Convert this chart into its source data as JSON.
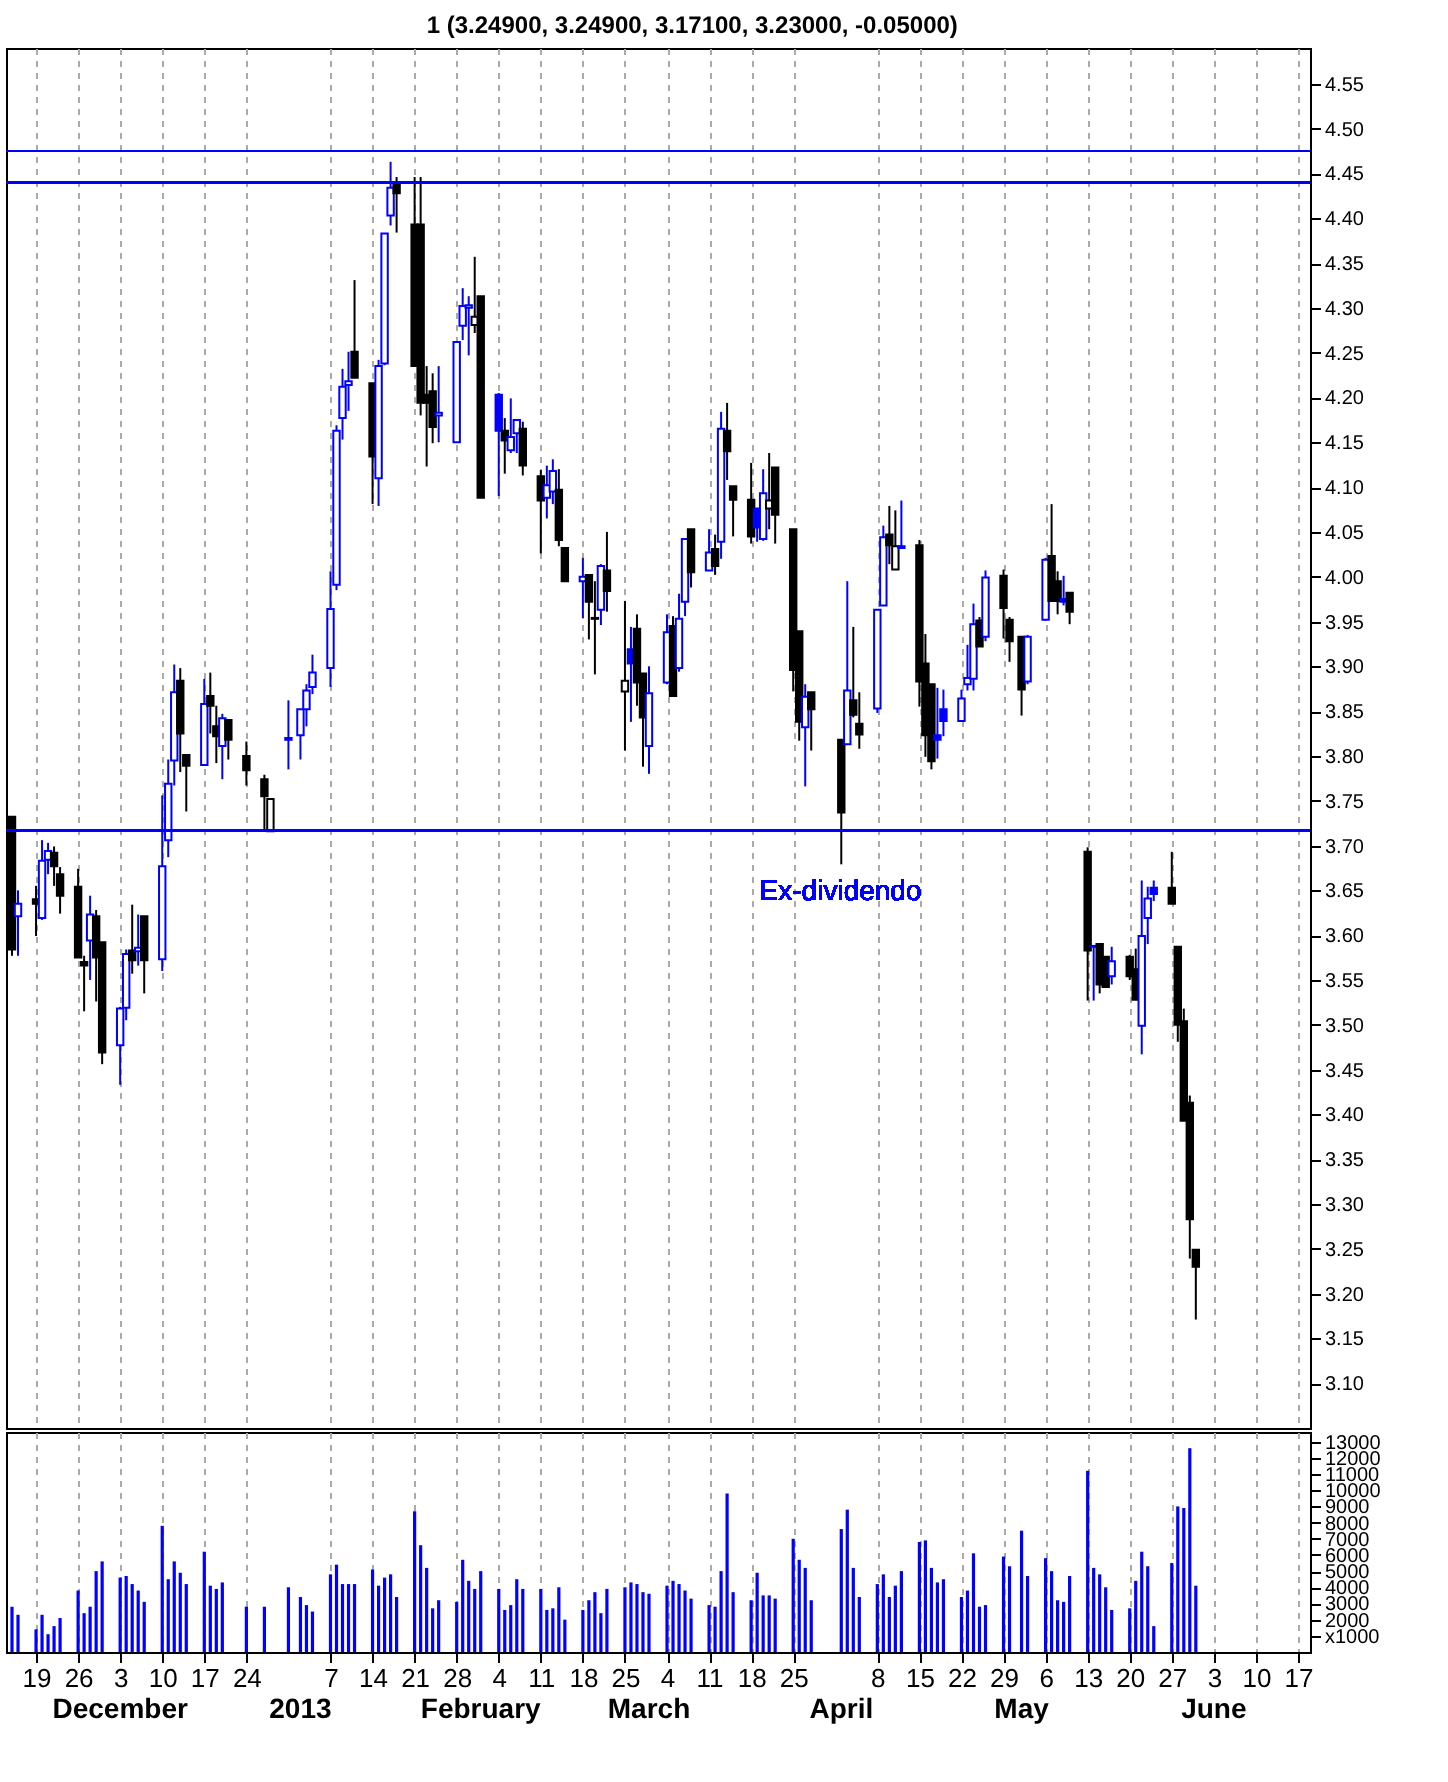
{
  "chart_data": [
    {
      "type": "candlestick",
      "title": "1 (3.24900, 3.24900, 3.17100, 3.23000, -0.05000)",
      "x": [
        "2012-11-15",
        "2012-11-16",
        "2012-11-19",
        "2012-11-20",
        "2012-11-21",
        "2012-11-22",
        "2012-11-23",
        "2012-11-26",
        "2012-11-27",
        "2012-11-28",
        "2012-11-29",
        "2012-11-30",
        "2012-12-03",
        "2012-12-04",
        "2012-12-05",
        "2012-12-06",
        "2012-12-07",
        "2012-12-10",
        "2012-12-11",
        "2012-12-12",
        "2012-12-13",
        "2012-12-14",
        "2012-12-17",
        "2012-12-18",
        "2012-12-19",
        "2012-12-20",
        "2012-12-21",
        "2012-12-24",
        "2012-12-27",
        "2012-12-28",
        "2012-12-31",
        "2013-01-02",
        "2013-01-03",
        "2013-01-04",
        "2013-01-07",
        "2013-01-08",
        "2013-01-09",
        "2013-01-10",
        "2013-01-11",
        "2013-01-14",
        "2013-01-15",
        "2013-01-16",
        "2013-01-17",
        "2013-01-18",
        "2013-01-21",
        "2013-01-22",
        "2013-01-23",
        "2013-01-24",
        "2013-01-25",
        "2013-01-28",
        "2013-01-29",
        "2013-01-30",
        "2013-01-31",
        "2013-02-01",
        "2013-02-04",
        "2013-02-05",
        "2013-02-06",
        "2013-02-07",
        "2013-02-08",
        "2013-02-11",
        "2013-02-12",
        "2013-02-13",
        "2013-02-14",
        "2013-02-15",
        "2013-02-18",
        "2013-02-19",
        "2013-02-20",
        "2013-02-21",
        "2013-02-22",
        "2013-02-25",
        "2013-02-26",
        "2013-02-27",
        "2013-02-28",
        "2013-03-01",
        "2013-03-04",
        "2013-03-05",
        "2013-03-06",
        "2013-03-07",
        "2013-03-08",
        "2013-03-11",
        "2013-03-12",
        "2013-03-13",
        "2013-03-14",
        "2013-03-15",
        "2013-03-18",
        "2013-03-19",
        "2013-03-20",
        "2013-03-21",
        "2013-03-22",
        "2013-03-25",
        "2013-03-26",
        "2013-03-27",
        "2013-03-28",
        "2013-04-02",
        "2013-04-03",
        "2013-04-04",
        "2013-04-05",
        "2013-04-08",
        "2013-04-09",
        "2013-04-10",
        "2013-04-11",
        "2013-04-12",
        "2013-04-15",
        "2013-04-16",
        "2013-04-17",
        "2013-04-18",
        "2013-04-19",
        "2013-04-22",
        "2013-04-23",
        "2013-04-24",
        "2013-04-25",
        "2013-04-26",
        "2013-04-29",
        "2013-04-30",
        "2013-05-02",
        "2013-05-03",
        "2013-05-06",
        "2013-05-07",
        "2013-05-08",
        "2013-05-09",
        "2013-05-10",
        "2013-05-13",
        "2013-05-14",
        "2013-05-15",
        "2013-05-16",
        "2013-05-17",
        "2013-05-20",
        "2013-05-21",
        "2013-05-22",
        "2013-05-23",
        "2013-05-24",
        "2013-05-27",
        "2013-05-28",
        "2013-05-29",
        "2013-05-30",
        "2013-05-31"
      ],
      "ohlc": [
        [
          3.732,
          3.732,
          3.577,
          3.584
        ],
        [
          3.621,
          3.65,
          3.577,
          3.635
        ],
        [
          3.64,
          3.655,
          3.599,
          3.635
        ],
        [
          3.619,
          3.706,
          3.617,
          3.683
        ],
        [
          3.684,
          3.703,
          3.668,
          3.694
        ],
        [
          3.692,
          3.699,
          3.655,
          3.677
        ],
        [
          3.668,
          3.676,
          3.624,
          3.644
        ],
        [
          3.654,
          3.674,
          3.575,
          3.575
        ],
        [
          3.57,
          3.577,
          3.515,
          3.566
        ],
        [
          3.594,
          3.644,
          3.55,
          3.623
        ],
        [
          3.621,
          3.628,
          3.526,
          3.575
        ],
        [
          3.592,
          3.592,
          3.456,
          3.469
        ],
        [
          3.477,
          3.52,
          3.433,
          3.518
        ],
        [
          3.519,
          3.584,
          3.505,
          3.579
        ],
        [
          3.583,
          3.634,
          3.557,
          3.572
        ],
        [
          3.582,
          3.623,
          3.566,
          3.586
        ],
        [
          3.621,
          3.621,
          3.535,
          3.572
        ],
        [
          3.573,
          3.756,
          3.56,
          3.677
        ],
        [
          3.706,
          3.796,
          3.687,
          3.769
        ],
        [
          3.795,
          3.902,
          3.767,
          3.871
        ],
        [
          3.884,
          3.898,
          3.782,
          3.825
        ],
        [
          3.801,
          3.801,
          3.738,
          3.789
        ],
        [
          3.79,
          3.886,
          3.79,
          3.858
        ],
        [
          3.867,
          3.893,
          3.825,
          3.856
        ],
        [
          3.833,
          3.856,
          3.792,
          3.822
        ],
        [
          3.811,
          3.847,
          3.774,
          3.842
        ],
        [
          3.84,
          3.84,
          3.796,
          3.818
        ],
        [
          3.8,
          3.816,
          3.767,
          3.784
        ],
        [
          3.774,
          3.779,
          3.716,
          3.755
        ],
        [
          3.716,
          3.752,
          3.716,
          3.752
        ],
        [
          3.818,
          3.862,
          3.785,
          3.82
        ],
        [
          3.823,
          3.852,
          3.796,
          3.852
        ],
        [
          3.852,
          3.88,
          3.833,
          3.873
        ],
        [
          3.877,
          3.913,
          3.869,
          3.893
        ],
        [
          3.898,
          4.006,
          3.877,
          3.964
        ],
        [
          3.991,
          4.169,
          3.985,
          4.163
        ],
        [
          4.177,
          4.232,
          4.153,
          4.212
        ],
        [
          4.214,
          4.251,
          4.185,
          4.218
        ],
        [
          4.251,
          4.331,
          4.222,
          4.222
        ],
        [
          4.216,
          4.216,
          4.081,
          4.134
        ],
        [
          4.11,
          4.242,
          4.079,
          4.235
        ],
        [
          4.238,
          4.383,
          4.236,
          4.383
        ],
        [
          4.403,
          4.463,
          4.392,
          4.434
        ],
        [
          4.437,
          4.446,
          4.384,
          4.428
        ],
        [
          4.393,
          4.446,
          4.235,
          4.235
        ],
        [
          4.393,
          4.446,
          4.18,
          4.194
        ],
        [
          4.203,
          4.235,
          4.123,
          4.194
        ],
        [
          4.207,
          4.227,
          4.149,
          4.167
        ],
        [
          4.18,
          4.235,
          4.15,
          4.183
        ],
        [
          4.15,
          4.262,
          4.15,
          4.262
        ],
        [
          4.28,
          4.322,
          4.264,
          4.302
        ],
        [
          4.3,
          4.313,
          4.247,
          4.303
        ],
        [
          4.281,
          4.357,
          4.272,
          4.29
        ],
        [
          4.313,
          4.313,
          4.088,
          4.088
        ],
        [
          4.203,
          4.205,
          4.09,
          4.163
        ],
        [
          4.163,
          4.177,
          4.115,
          4.152
        ],
        [
          4.141,
          4.199,
          4.138,
          4.156
        ],
        [
          4.16,
          4.175,
          4.138,
          4.175
        ],
        [
          4.165,
          4.173,
          4.113,
          4.124
        ],
        [
          4.112,
          4.119,
          4.026,
          4.085
        ],
        [
          4.088,
          4.124,
          4.065,
          4.102
        ],
        [
          4.095,
          4.131,
          4.081,
          4.118
        ],
        [
          4.097,
          4.12,
          4.034,
          4.041
        ],
        [
          4.032,
          4.032,
          3.995,
          3.995
        ],
        [
          3.995,
          4.021,
          3.954,
          4.0
        ],
        [
          4.002,
          4.002,
          3.93,
          3.972
        ],
        [
          3.954,
          3.995,
          3.891,
          3.953
        ],
        [
          3.963,
          4.014,
          3.946,
          4.012
        ],
        [
          4.007,
          4.05,
          3.961,
          3.984
        ],
        [
          3.872,
          3.973,
          3.806,
          3.884
        ],
        [
          3.919,
          3.944,
          3.838,
          3.903
        ],
        [
          3.942,
          3.958,
          3.856,
          3.882
        ],
        [
          3.892,
          3.892,
          3.788,
          3.843
        ],
        [
          3.811,
          3.9,
          3.78,
          3.87
        ],
        [
          3.882,
          3.958,
          3.88,
          3.938
        ],
        [
          3.945,
          3.956,
          3.867,
          3.867
        ],
        [
          3.898,
          3.981,
          3.894,
          3.953
        ],
        [
          3.972,
          4.042,
          3.956,
          4.042
        ],
        [
          4.053,
          4.053,
          3.988,
          4.005
        ],
        [
          4.007,
          4.053,
          4.007,
          4.027
        ],
        [
          4.031,
          4.047,
          4.002,
          4.012
        ],
        [
          4.039,
          4.184,
          4.02,
          4.165
        ],
        [
          4.163,
          4.194,
          4.108,
          4.14
        ],
        [
          4.101,
          4.101,
          4.045,
          4.086
        ],
        [
          4.086,
          4.127,
          4.037,
          4.045
        ],
        [
          4.076,
          4.076,
          4.039,
          4.055
        ],
        [
          4.042,
          4.12,
          4.04,
          4.093
        ],
        [
          4.076,
          4.138,
          4.053,
          4.085
        ],
        [
          4.122,
          4.122,
          4.037,
          4.069
        ],
        [
          4.053,
          4.053,
          3.872,
          3.896
        ],
        [
          3.939,
          3.939,
          3.817,
          3.838
        ],
        [
          3.832,
          3.88,
          3.766,
          3.866
        ],
        [
          3.871,
          3.871,
          3.806,
          3.852
        ],
        [
          3.818,
          3.818,
          3.679,
          3.737
        ],
        [
          3.813,
          3.995,
          3.813,
          3.873
        ],
        [
          3.862,
          3.944,
          3.843,
          3.846
        ],
        [
          3.836,
          3.871,
          3.808,
          3.824
        ],
        [
          3.853,
          3.963,
          3.848,
          3.963
        ],
        [
          3.968,
          4.057,
          3.968,
          4.044
        ],
        [
          4.047,
          4.079,
          4.014,
          4.035
        ],
        [
          4.008,
          4.074,
          4.008,
          4.034
        ],
        [
          4.034,
          4.085,
          4.032,
          4.032
        ],
        [
          4.035,
          4.041,
          3.855,
          3.883
        ],
        [
          3.903,
          3.936,
          3.799,
          3.823
        ],
        [
          3.88,
          3.88,
          3.785,
          3.794
        ],
        [
          3.823,
          3.876,
          3.797,
          3.818
        ],
        [
          3.852,
          3.874,
          3.822,
          3.839
        ],
        [
          3.839,
          3.874,
          3.838,
          3.864
        ],
        [
          3.88,
          3.924,
          3.873,
          3.887
        ],
        [
          3.886,
          3.97,
          3.873,
          3.947
        ],
        [
          3.951,
          3.955,
          3.922,
          3.922
        ],
        [
          3.933,
          4.007,
          3.928,
          3.999
        ],
        [
          4.001,
          4.008,
          3.931,
          3.965
        ],
        [
          3.952,
          3.955,
          3.905,
          3.928
        ],
        [
          3.933,
          3.933,
          3.845,
          3.874
        ],
        [
          3.883,
          3.935,
          3.88,
          3.933
        ],
        [
          3.952,
          4.021,
          3.951,
          4.019
        ],
        [
          4.023,
          4.081,
          3.973,
          3.973
        ],
        [
          3.995,
          4.006,
          3.958,
          3.973
        ],
        [
          3.975,
          4.001,
          3.968,
          3.972
        ],
        [
          3.982,
          3.982,
          3.947,
          3.961
        ],
        [
          3.693,
          3.698,
          3.527,
          3.583
        ],
        [
          3.587,
          3.588,
          3.527,
          3.588
        ],
        [
          3.59,
          3.59,
          3.535,
          3.545
        ],
        [
          3.576,
          3.576,
          3.541,
          3.542
        ],
        [
          3.554,
          3.587,
          3.545,
          3.571
        ],
        [
          3.576,
          3.578,
          3.55,
          3.554
        ],
        [
          3.562,
          3.585,
          3.528,
          3.528
        ],
        [
          3.499,
          3.661,
          3.467,
          3.599
        ],
        [
          3.619,
          3.654,
          3.59,
          3.641
        ],
        [
          3.653,
          3.661,
          3.638,
          3.646
        ],
        [
          3.653,
          3.693,
          3.635,
          3.635
        ],
        [
          3.587,
          3.587,
          3.481,
          3.5
        ],
        [
          3.504,
          3.518,
          3.393,
          3.393
        ],
        [
          3.413,
          3.421,
          3.239,
          3.283
        ],
        [
          3.249,
          3.249,
          3.171,
          3.23
        ]
      ],
      "colors": [
        "#000000",
        "#0000ff",
        "#000000",
        "#0000ff",
        "#0000ff",
        "#000000",
        "#000000",
        "#000000",
        "#000000",
        "#0000ff",
        "#000000",
        "#000000",
        "#0000ff",
        "#0000ff",
        "#000000",
        "#0000ff",
        "#000000",
        "#0000ff",
        "#0000ff",
        "#0000ff",
        "#000000",
        "#000000",
        "#0000ff",
        "#000000",
        "#000000",
        "#0000ff",
        "#000000",
        "#000000",
        "#000000",
        "#000000",
        "#0000ff",
        "#0000ff",
        "#0000ff",
        "#0000ff",
        "#0000ff",
        "#0000ff",
        "#0000ff",
        "#0000ff",
        "#000000",
        "#000000",
        "#0000ff",
        "#0000ff",
        "#0000ff",
        "#000000",
        "#000000",
        "#000000",
        "#000000",
        "#000000",
        "#0000ff",
        "#0000ff",
        "#0000ff",
        "#0000ff",
        "#000000",
        "#000000",
        "#0000ff",
        "#000000",
        "#0000ff",
        "#0000ff",
        "#000000",
        "#000000",
        "#0000ff",
        "#0000ff",
        "#000000",
        "#000000",
        "#0000ff",
        "#000000",
        "#000000",
        "#0000ff",
        "#000000",
        "#000000",
        "#0000ff",
        "#000000",
        "#000000",
        "#0000ff",
        "#0000ff",
        "#000000",
        "#0000ff",
        "#0000ff",
        "#000000",
        "#0000ff",
        "#000000",
        "#0000ff",
        "#000000",
        "#000000",
        "#000000",
        "#0000ff",
        "#0000ff",
        "#000000",
        "#000000",
        "#000000",
        "#000000",
        "#0000ff",
        "#000000",
        "#000000",
        "#0000ff",
        "#000000",
        "#000000",
        "#0000ff",
        "#0000ff",
        "#000000",
        "#000000",
        "#0000ff",
        "#000000",
        "#000000",
        "#000000",
        "#0000ff",
        "#0000ff",
        "#0000ff",
        "#0000ff",
        "#0000ff",
        "#000000",
        "#0000ff",
        "#000000",
        "#000000",
        "#000000",
        "#0000ff",
        "#0000ff",
        "#000000",
        "#000000",
        "#0000ff",
        "#000000",
        "#000000",
        "#0000ff",
        "#000000",
        "#000000",
        "#0000ff",
        "#000000",
        "#000000",
        "#0000ff",
        "#0000ff",
        "#0000ff",
        "#000000",
        "#000000",
        "#000000",
        "#000000",
        "#000000"
      ],
      "xlim": [
        "2012-11-14",
        "2013-06-19"
      ],
      "xticks": [
        {
          "value": "2012-11-19",
          "label": null
        },
        {
          "value": "2012-11-26",
          "label": null
        },
        {
          "value": "2012-12-03",
          "label": null
        },
        {
          "value": "2012-12-10",
          "label": null
        },
        {
          "value": "2012-12-17",
          "label": null
        },
        {
          "value": "2012-12-24",
          "label": null
        },
        {
          "value": "2013-01-07",
          "label": null
        },
        {
          "value": "2013-01-14",
          "label": null
        },
        {
          "value": "2013-01-21",
          "label": null
        },
        {
          "value": "2013-01-28",
          "label": null
        },
        {
          "value": "2013-02-04",
          "label": null
        },
        {
          "value": "2013-02-11",
          "label": null
        },
        {
          "value": "2013-02-18",
          "label": null
        },
        {
          "value": "2013-02-25",
          "label": null
        },
        {
          "value": "2013-03-04",
          "label": null
        },
        {
          "value": "2013-03-11",
          "label": null
        },
        {
          "value": "2013-03-18",
          "label": null
        },
        {
          "value": "2013-03-25",
          "label": null
        },
        {
          "value": "2013-04-08",
          "label": null
        },
        {
          "value": "2013-04-15",
          "label": null
        },
        {
          "value": "2013-04-22",
          "label": null
        },
        {
          "value": "2013-04-29",
          "label": null
        },
        {
          "value": "2013-05-06",
          "label": null
        },
        {
          "value": "2013-05-13",
          "label": null
        },
        {
          "value": "2013-05-20",
          "label": null
        },
        {
          "value": "2013-05-27",
          "label": null
        },
        {
          "value": "2013-06-03",
          "label": null
        },
        {
          "value": "2013-06-10",
          "label": null
        },
        {
          "value": "2013-06-17",
          "label": null
        }
      ],
      "ylim": [
        3.05,
        4.59
      ],
      "yticks": [
        {
          "value": 3.1,
          "label": "3.10"
        },
        3.15,
        {
          "value": 3.2,
          "label": "3.20"
        },
        3.25,
        {
          "value": 3.3,
          "label": "3.30"
        },
        3.35,
        {
          "value": 3.4,
          "label": "3.40"
        },
        3.45,
        {
          "value": 3.5,
          "label": "3.50"
        },
        3.55,
        {
          "value": 3.6,
          "label": "3.60"
        },
        3.65,
        {
          "value": 3.7,
          "label": "3.70"
        },
        3.75,
        {
          "value": 3.8,
          "label": "3.80"
        },
        3.85,
        {
          "value": 3.9,
          "label": "3.90"
        },
        3.95,
        {
          "value": 4,
          "label": "4.00"
        },
        4.05,
        {
          "value": 4.1,
          "label": "4.10"
        },
        4.15,
        {
          "value": 4.2,
          "label": "4.20"
        },
        4.25,
        {
          "value": 4.3,
          "label": "4.30"
        },
        4.35,
        {
          "value": 4.4,
          "label": "4.40"
        },
        4.45,
        {
          "value": 4.5,
          "label": "4.50"
        },
        4.55
      ],
      "grid": "x",
      "tick_labels": "y",
      "ref_lines": [
        {
          "axis": "y",
          "value": 4.475,
          "color": "#0000ff"
        },
        {
          "axis": "y",
          "value": 4.44,
          "color": "#0000ff"
        },
        {
          "axis": "y",
          "value": 3.717,
          "color": "#0000ff"
        }
      ],
      "annotations": [
        "Ex-dividendo"
      ]
    },
    {
      "type": "bar",
      "x": [
        "2012-11-15",
        "2012-11-16",
        "2012-11-19",
        "2012-11-20",
        "2012-11-21",
        "2012-11-22",
        "2012-11-23",
        "2012-11-26",
        "2012-11-27",
        "2012-11-28",
        "2012-11-29",
        "2012-11-30",
        "2012-12-03",
        "2012-12-04",
        "2012-12-05",
        "2012-12-06",
        "2012-12-07",
        "2012-12-10",
        "2012-12-11",
        "2012-12-12",
        "2012-12-13",
        "2012-12-14",
        "2012-12-17",
        "2012-12-18",
        "2012-12-19",
        "2012-12-20",
        "2012-12-21",
        "2012-12-24",
        "2012-12-27",
        "2012-12-28",
        "2012-12-31",
        "2013-01-02",
        "2013-01-03",
        "2013-01-04",
        "2013-01-07",
        "2013-01-08",
        "2013-01-09",
        "2013-01-10",
        "2013-01-11",
        "2013-01-14",
        "2013-01-15",
        "2013-01-16",
        "2013-01-17",
        "2013-01-18",
        "2013-01-21",
        "2013-01-22",
        "2013-01-23",
        "2013-01-24",
        "2013-01-25",
        "2013-01-28",
        "2013-01-29",
        "2013-01-30",
        "2013-01-31",
        "2013-02-01",
        "2013-02-04",
        "2013-02-05",
        "2013-02-06",
        "2013-02-07",
        "2013-02-08",
        "2013-02-11",
        "2013-02-12",
        "2013-02-13",
        "2013-02-14",
        "2013-02-15",
        "2013-02-18",
        "2013-02-19",
        "2013-02-20",
        "2013-02-21",
        "2013-02-22",
        "2013-02-25",
        "2013-02-26",
        "2013-02-27",
        "2013-02-28",
        "2013-03-01",
        "2013-03-04",
        "2013-03-05",
        "2013-03-06",
        "2013-03-07",
        "2013-03-08",
        "2013-03-11",
        "2013-03-12",
        "2013-03-13",
        "2013-03-14",
        "2013-03-15",
        "2013-03-18",
        "2013-03-19",
        "2013-03-20",
        "2013-03-21",
        "2013-03-22",
        "2013-03-25",
        "2013-03-26",
        "2013-03-27",
        "2013-03-28",
        "2013-04-02",
        "2013-04-03",
        "2013-04-04",
        "2013-04-05",
        "2013-04-08",
        "2013-04-09",
        "2013-04-10",
        "2013-04-11",
        "2013-04-12",
        "2013-04-15",
        "2013-04-16",
        "2013-04-17",
        "2013-04-18",
        "2013-04-19",
        "2013-04-22",
        "2013-04-23",
        "2013-04-24",
        "2013-04-25",
        "2013-04-26",
        "2013-04-29",
        "2013-04-30",
        "2013-05-02",
        "2013-05-03",
        "2013-05-06",
        "2013-05-07",
        "2013-05-08",
        "2013-05-09",
        "2013-05-10",
        "2013-05-13",
        "2013-05-14",
        "2013-05-15",
        "2013-05-16",
        "2013-05-17",
        "2013-05-20",
        "2013-05-21",
        "2013-05-22",
        "2013-05-23",
        "2013-05-24",
        "2013-05-27",
        "2013-05-28",
        "2013-05-29",
        "2013-05-30",
        "2013-05-31"
      ],
      "values": [
        2800,
        2300,
        1400,
        2300,
        1100,
        1600,
        2100,
        3800,
        2400,
        2800,
        5000,
        5600,
        4600,
        4700,
        4200,
        3800,
        3100,
        7800,
        4500,
        5600,
        4900,
        4200,
        6200,
        4100,
        3900,
        4300,
        null,
        2800,
        2800,
        null,
        4000,
        3400,
        2900,
        2500,
        4800,
        5400,
        4200,
        4200,
        4200,
        5100,
        4100,
        4600,
        4800,
        3400,
        8700,
        6600,
        5200,
        2700,
        3200,
        3100,
        5700,
        4400,
        3900,
        5000,
        3900,
        2600,
        2900,
        4500,
        3900,
        3900,
        2600,
        2700,
        4000,
        2000,
        2600,
        3200,
        3700,
        2400,
        3900,
        4000,
        4300,
        4200,
        3700,
        3600,
        4100,
        4400,
        4200,
        3800,
        3300,
        2900,
        2800,
        5000,
        9800,
        3700,
        3200,
        4900,
        3500,
        3500,
        3300,
        7000,
        5700,
        5200,
        3200,
        7600,
        8800,
        5200,
        3400,
        4200,
        4800,
        3400,
        4100,
        5000,
        6800,
        6900,
        5200,
        4300,
        4500,
        3400,
        3800,
        6100,
        2800,
        2900,
        5900,
        5300,
        7500,
        4700,
        5800,
        5000,
        3200,
        3100,
        4700,
        11200,
        5200,
        4800,
        4000,
        2600,
        2700,
        4400,
        6200,
        5300,
        1600,
        5500,
        9000,
        8900,
        12600,
        4100
      ],
      "color": "#0000ff",
      "xlim": [
        "2012-11-14",
        "2013-06-19"
      ],
      "xticks": [
        {
          "value": "2012-11-19",
          "label": "19"
        },
        {
          "value": "2012-11-26",
          "label": "26"
        },
        {
          "value": "2012-12-03",
          "label": "3"
        },
        {
          "value": "2012-12-10",
          "label": "10"
        },
        {
          "value": "2012-12-17",
          "label": "17"
        },
        {
          "value": "2012-12-24",
          "label": "24"
        },
        {
          "value": "2013-01-07",
          "label": "7"
        },
        {
          "value": "2013-01-14",
          "label": "14"
        },
        {
          "value": "2013-01-21",
          "label": "21"
        },
        {
          "value": "2013-01-28",
          "label": "28"
        },
        {
          "value": "2013-02-04",
          "label": "4"
        },
        {
          "value": "2013-02-11",
          "label": "11"
        },
        {
          "value": "2013-02-18",
          "label": "18"
        },
        {
          "value": "2013-02-25",
          "label": "25"
        },
        {
          "value": "2013-03-04",
          "label": "4"
        },
        {
          "value": "2013-03-11",
          "label": "11"
        },
        {
          "value": "2013-03-18",
          "label": "18"
        },
        {
          "value": "2013-03-25",
          "label": "25"
        },
        {
          "value": "2013-04-08",
          "label": "8"
        },
        {
          "value": "2013-04-15",
          "label": "15"
        },
        {
          "value": "2013-04-22",
          "label": "22"
        },
        {
          "value": "2013-04-29",
          "label": "29"
        },
        {
          "value": "2013-05-06",
          "label": "6"
        },
        {
          "value": "2013-05-13",
          "label": "13"
        },
        {
          "value": "2013-05-20",
          "label": "20"
        },
        {
          "value": "2013-05-27",
          "label": "27"
        },
        {
          "value": "2013-06-03",
          "label": "3"
        },
        {
          "value": "2013-06-10",
          "label": "10"
        },
        {
          "value": "2013-06-17",
          "label": "17"
        }
      ],
      "x2lim": [
        "2012-11-14",
        "2013-06-19"
      ],
      "x2ticks": [
        {
          "value": "2012-12-03",
          "label": "December"
        },
        {
          "value": "2013-01-02",
          "label": "2013"
        },
        {
          "value": "2013-02-01",
          "label": "February"
        },
        {
          "value": "2013-03-01",
          "label": "March"
        },
        {
          "value": "2013-04-02",
          "label": "April"
        },
        {
          "value": "2013-05-02",
          "label": "May"
        },
        {
          "value": "2013-06-03",
          "label": "June"
        }
      ],
      "ylim": [
        0,
        13600
      ],
      "yticks": [
        {
          "value": 1000,
          "label": "x1000"
        },
        2000,
        3000,
        4000,
        5000,
        6000,
        7000,
        8000,
        9000,
        10000,
        11000,
        12000,
        13000
      ],
      "grid": "x"
    }
  ]
}
